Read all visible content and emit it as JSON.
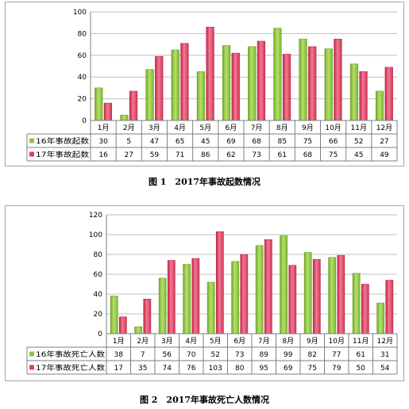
{
  "chart_data": [
    {
      "type": "bar",
      "categories": [
        "1月",
        "2月",
        "3月",
        "4月",
        "5月",
        "6月",
        "7月",
        "8月",
        "9月",
        "10月",
        "11月",
        "12月"
      ],
      "series": [
        {
          "name": "16年事故起数",
          "values": [
            30,
            5,
            47,
            65,
            45,
            69,
            68,
            85,
            75,
            66,
            52,
            27
          ]
        },
        {
          "name": "17年事故起数",
          "values": [
            16,
            27,
            59,
            71,
            86,
            62,
            73,
            61,
            68,
            75,
            45,
            49
          ]
        }
      ],
      "ylim": [
        0,
        100
      ],
      "yticks": [
        0,
        20,
        40,
        60,
        80,
        100
      ],
      "grid": true,
      "data_table": true,
      "title": "",
      "caption": "图 1　2017年事故起数情况",
      "colors": {
        "s1": "#8dc63f",
        "s2": "#e23d5e"
      }
    },
    {
      "type": "bar",
      "categories": [
        "1月",
        "2月",
        "3月",
        "4月",
        "5月",
        "6月",
        "7月",
        "8月",
        "9月",
        "10月",
        "11月",
        "12月"
      ],
      "series": [
        {
          "name": "16年事故死亡人数",
          "values": [
            38,
            7,
            56,
            70,
            52,
            73,
            89,
            99,
            82,
            77,
            61,
            31
          ]
        },
        {
          "name": "17年事故死亡人数",
          "values": [
            17,
            35,
            74,
            76,
            103,
            80,
            95,
            69,
            75,
            79,
            50,
            54
          ]
        }
      ],
      "ylim": [
        0,
        120
      ],
      "yticks": [
        0,
        20,
        40,
        60,
        80,
        100,
        120
      ],
      "grid": true,
      "data_table": true,
      "title": "",
      "caption": "图 2　2017年事故死亡人数情况",
      "colors": {
        "s1": "#8dc63f",
        "s2": "#e23d5e"
      }
    }
  ]
}
